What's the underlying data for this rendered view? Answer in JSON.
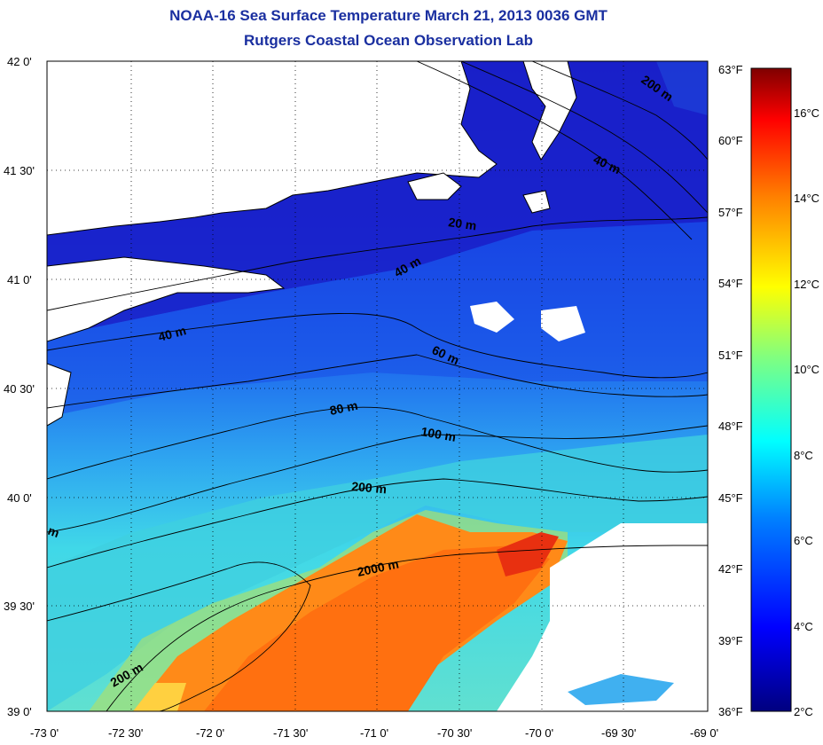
{
  "title": {
    "line1": "NOAA-16 Sea Surface Temperature March 21, 2013 0036 GMT",
    "line2": "Rutgers Coastal Ocean Observation Lab"
  },
  "map": {
    "lat_labels": [
      "42 0'",
      "41 30'",
      "41 0'",
      "40 30'",
      "40 0'",
      "39 30'",
      "39 0'"
    ],
    "lon_labels": [
      "-73 0'",
      "-72 30'",
      "-72 0'",
      "-71 30'",
      "-71 0'",
      "-70 30'",
      "-70 0'",
      "-69 30'",
      "-69 0'"
    ],
    "fahrenheit_labels": [
      "63°F",
      "60°F",
      "57°F",
      "54°F",
      "51°F",
      "48°F",
      "45°F",
      "42°F",
      "39°F",
      "36°F"
    ],
    "contour_labels": [
      "200 m",
      "40 m",
      "20 m",
      "40 m",
      "40 m",
      "60 m",
      "80 m",
      "100 m",
      "200 m",
      "m",
      "2000 m",
      "200 m"
    ]
  },
  "colorbar": {
    "celsius_labels": [
      "16°C",
      "14°C",
      "12°C",
      "10°C",
      "8°C",
      "6°C",
      "4°C",
      "2°C"
    ],
    "colors": [
      "#00007f",
      "#0000ff",
      "#0080ff",
      "#00ffff",
      "#80ff80",
      "#ffff00",
      "#ff8000",
      "#ff0000",
      "#7f0000"
    ]
  }
}
